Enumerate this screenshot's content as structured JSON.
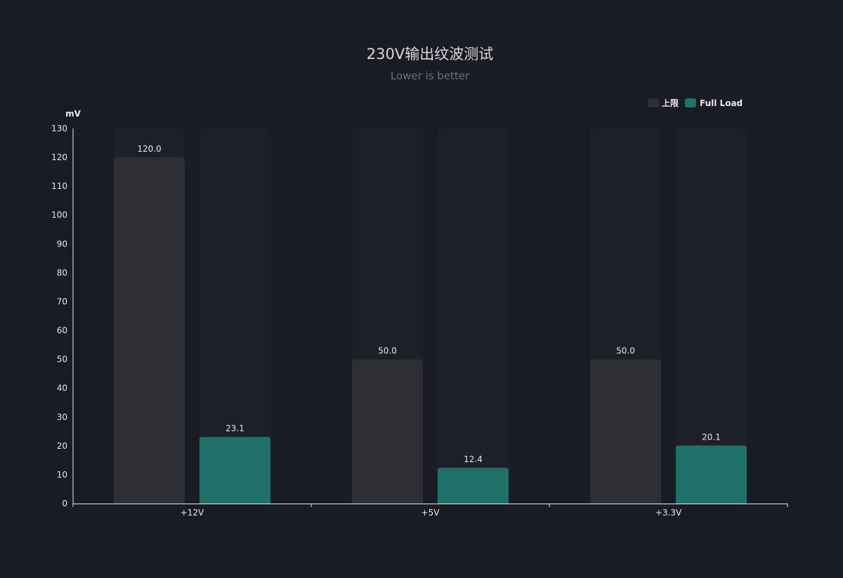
{
  "chart_data": {
    "type": "bar",
    "title": "230V输出纹波测试",
    "subtitle": "Lower is better",
    "ylabel": "mV",
    "xlabel": "",
    "categories": [
      "+12V",
      "+5V",
      "+3.3V"
    ],
    "series": [
      {
        "name": "上限",
        "values": [
          120.0,
          50.0,
          50.0
        ],
        "color": "#2e2f34",
        "labels": [
          "120.0",
          "50.0",
          "50.0"
        ]
      },
      {
        "name": "Full Load",
        "values": [
          23.1,
          12.4,
          20.1
        ],
        "color": "#21716b",
        "labels": [
          "23.1",
          "12.4",
          "20.1"
        ]
      }
    ],
    "ylim": [
      0,
      130
    ],
    "yticks": [
      0,
      10,
      20,
      30,
      40,
      50,
      60,
      70,
      80,
      90,
      100,
      110,
      120,
      130
    ],
    "background_bar_color": "#1e2029",
    "grid": false,
    "legend_position": "top-right"
  }
}
